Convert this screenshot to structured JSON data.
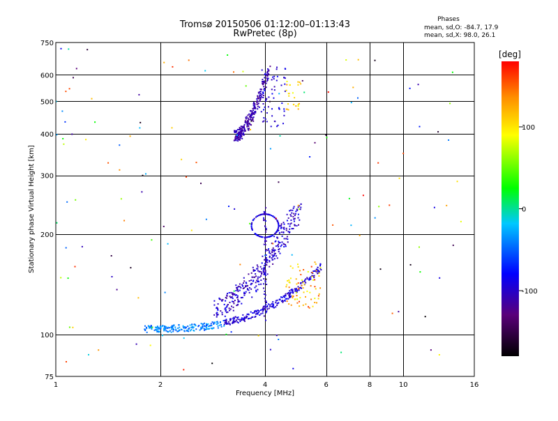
{
  "chart_data": {
    "type": "scatter",
    "title": "Tromsø 20150506 01:12:00–01:13:43",
    "subtitle": "RwPretec (8p)",
    "xlabel": "Frequency [MHz]",
    "ylabel": "Stationary phase Virtual Height [km]",
    "x_scale": "log",
    "y_scale": "log",
    "xlim": [
      1,
      16
    ],
    "ylim": [
      75,
      750
    ],
    "x_ticks": [
      1,
      2,
      4,
      6,
      8,
      10,
      16
    ],
    "x_tick_labels": [
      "1",
      "2",
      "4",
      "6",
      "8",
      "10",
      "16"
    ],
    "y_ticks": [
      75,
      100,
      200,
      300,
      400,
      500,
      600,
      750
    ],
    "y_tick_labels": [
      "75",
      "100",
      "200",
      "300",
      "400",
      "500",
      "600",
      "750"
    ],
    "grid": true,
    "stats": {
      "heading": "Phases",
      "line_o": "mean, sd,O: -84.7, 17.9",
      "line_x": "mean, sd,X:  98.0, 26.1"
    },
    "colorbar": {
      "label": "[deg]",
      "min": -180,
      "max": 180,
      "ticks": [
        100,
        0,
        -100
      ],
      "tick_labels": [
        "100",
        "0",
        "-100"
      ],
      "colors": [
        "#000000",
        "#5a007a",
        "#0000ff",
        "#00c8ff",
        "#00ff00",
        "#ffff00",
        "#ff8c00",
        "#ff0000"
      ]
    },
    "traces": [
      {
        "description": "F-layer trace",
        "x0": 3.3,
        "x1": 4.1,
        "y0": 395,
        "y1": 620,
        "phase": -110
      },
      {
        "description": "lower trace",
        "x0": 1.8,
        "x1": 5.8,
        "y0": 104,
        "y1": 160,
        "phase": -95
      },
      {
        "description": "mid trace",
        "x0": 2.9,
        "x1": 5.0,
        "y0": 120,
        "y1": 240,
        "phase": -100
      }
    ]
  }
}
